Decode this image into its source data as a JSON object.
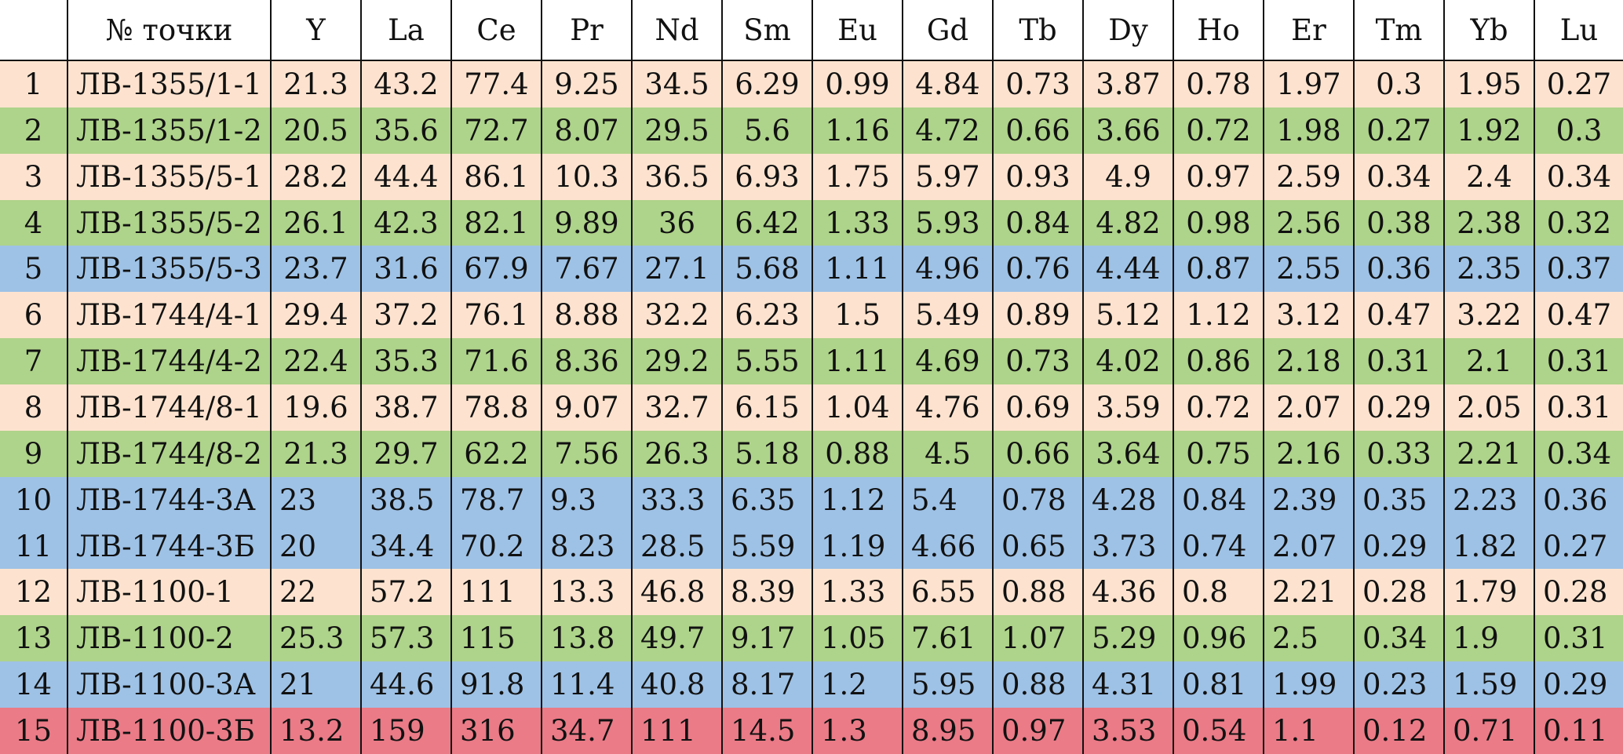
{
  "table": {
    "headers": [
      "",
      "№ точки",
      "Y",
      "La",
      "Ce",
      "Pr",
      "Nd",
      "Sm",
      "Eu",
      "Gd",
      "Tb",
      "Dy",
      "Ho",
      "Er",
      "Tm",
      "Yb",
      "Lu"
    ],
    "colors": {
      "peach": "#fde3cf",
      "green": "#aed38a",
      "blue": "#9ec2e6",
      "red": "#ea7b87"
    },
    "rows": [
      {
        "color": "peach",
        "align": "center",
        "cells": [
          "1",
          "ЛВ-1355/1-1",
          "21.3",
          "43.2",
          "77.4",
          "9.25",
          "34.5",
          "6.29",
          "0.99",
          "4.84",
          "0.73",
          "3.87",
          "0.78",
          "1.97",
          "0.3",
          "1.95",
          "0.27"
        ]
      },
      {
        "color": "green",
        "align": "center",
        "cells": [
          "2",
          "ЛВ-1355/1-2",
          "20.5",
          "35.6",
          "72.7",
          "8.07",
          "29.5",
          "5.6",
          "1.16",
          "4.72",
          "0.66",
          "3.66",
          "0.72",
          "1.98",
          "0.27",
          "1.92",
          "0.3"
        ]
      },
      {
        "color": "peach",
        "align": "center",
        "cells": [
          "3",
          "ЛВ-1355/5-1",
          "28.2",
          "44.4",
          "86.1",
          "10.3",
          "36.5",
          "6.93",
          "1.75",
          "5.97",
          "0.93",
          "4.9",
          "0.97",
          "2.59",
          "0.34",
          "2.4",
          "0.34"
        ]
      },
      {
        "color": "green",
        "align": "center",
        "cells": [
          "4",
          "ЛВ-1355/5-2",
          "26.1",
          "42.3",
          "82.1",
          "9.89",
          "36",
          "6.42",
          "1.33",
          "5.93",
          "0.84",
          "4.82",
          "0.98",
          "2.56",
          "0.38",
          "2.38",
          "0.32"
        ]
      },
      {
        "color": "blue",
        "align": "center",
        "cells": [
          "5",
          "ЛВ-1355/5-3",
          "23.7",
          "31.6",
          "67.9",
          "7.67",
          "27.1",
          "5.68",
          "1.11",
          "4.96",
          "0.76",
          "4.44",
          "0.87",
          "2.55",
          "0.36",
          "2.35",
          "0.37"
        ]
      },
      {
        "color": "peach",
        "align": "center",
        "cells": [
          "6",
          "ЛВ-1744/4-1",
          "29.4",
          "37.2",
          "76.1",
          "8.88",
          "32.2",
          "6.23",
          "1.5",
          "5.49",
          "0.89",
          "5.12",
          "1.12",
          "3.12",
          "0.47",
          "3.22",
          "0.47"
        ]
      },
      {
        "color": "green",
        "align": "center",
        "cells": [
          "7",
          "ЛВ-1744/4-2",
          "22.4",
          "35.3",
          "71.6",
          "8.36",
          "29.2",
          "5.55",
          "1.11",
          "4.69",
          "0.73",
          "4.02",
          "0.86",
          "2.18",
          "0.31",
          "2.1",
          "0.31"
        ]
      },
      {
        "color": "peach",
        "align": "center",
        "cells": [
          "8",
          "ЛВ-1744/8-1",
          "19.6",
          "38.7",
          "78.8",
          "9.07",
          "32.7",
          "6.15",
          "1.04",
          "4.76",
          "0.69",
          "3.59",
          "0.72",
          "2.07",
          "0.29",
          "2.05",
          "0.31"
        ]
      },
      {
        "color": "green",
        "align": "center",
        "cells": [
          "9",
          "ЛВ-1744/8-2",
          "21.3",
          "29.7",
          "62.2",
          "7.56",
          "26.3",
          "5.18",
          "0.88",
          "4.5",
          "0.66",
          "3.64",
          "0.75",
          "2.16",
          "0.33",
          "2.21",
          "0.34"
        ]
      },
      {
        "color": "blue",
        "align": "left",
        "cells": [
          "10",
          "ЛВ-1744-3А",
          "23",
          "38.5",
          "78.7",
          "9.3",
          "33.3",
          "6.35",
          "1.12",
          "5.4",
          "0.78",
          "4.28",
          "0.84",
          "2.39",
          "0.35",
          "2.23",
          "0.36"
        ]
      },
      {
        "color": "blue",
        "align": "left",
        "cells": [
          "11",
          "ЛВ-1744-3Б",
          "20",
          "34.4",
          "70.2",
          "8.23",
          "28.5",
          "5.59",
          "1.19",
          "4.66",
          "0.65",
          "3.73",
          "0.74",
          "2.07",
          "0.29",
          "1.82",
          "0.27"
        ]
      },
      {
        "color": "peach",
        "align": "left",
        "cells": [
          "12",
          "ЛВ-1100-1",
          "22",
          "57.2",
          "111",
          "13.3",
          "46.8",
          "8.39",
          "1.33",
          "6.55",
          "0.88",
          "4.36",
          "0.8",
          "2.21",
          "0.28",
          "1.79",
          "0.28"
        ]
      },
      {
        "color": "green",
        "align": "left",
        "cells": [
          "13",
          "ЛВ-1100-2",
          "25.3",
          "57.3",
          "115",
          "13.8",
          "49.7",
          "9.17",
          "1.05",
          "7.61",
          "1.07",
          "5.29",
          "0.96",
          "2.5",
          "0.34",
          "1.9",
          "0.31"
        ]
      },
      {
        "color": "blue",
        "align": "left",
        "cells": [
          "14",
          "ЛВ-1100-3А",
          "21",
          "44.6",
          "91.8",
          "11.4",
          "40.8",
          "8.17",
          "1.2",
          "5.95",
          "0.88",
          "4.31",
          "0.81",
          "1.99",
          "0.23",
          "1.59",
          "0.29"
        ]
      },
      {
        "color": "red",
        "align": "left",
        "cells": [
          "15",
          "ЛВ-1100-3Б",
          "13.2",
          "159",
          "316",
          "34.7",
          "111",
          "14.5",
          "1.3",
          "8.95",
          "0.97",
          "3.53",
          "0.54",
          "1.1",
          "0.12",
          "0.71",
          "0.11"
        ]
      }
    ]
  }
}
